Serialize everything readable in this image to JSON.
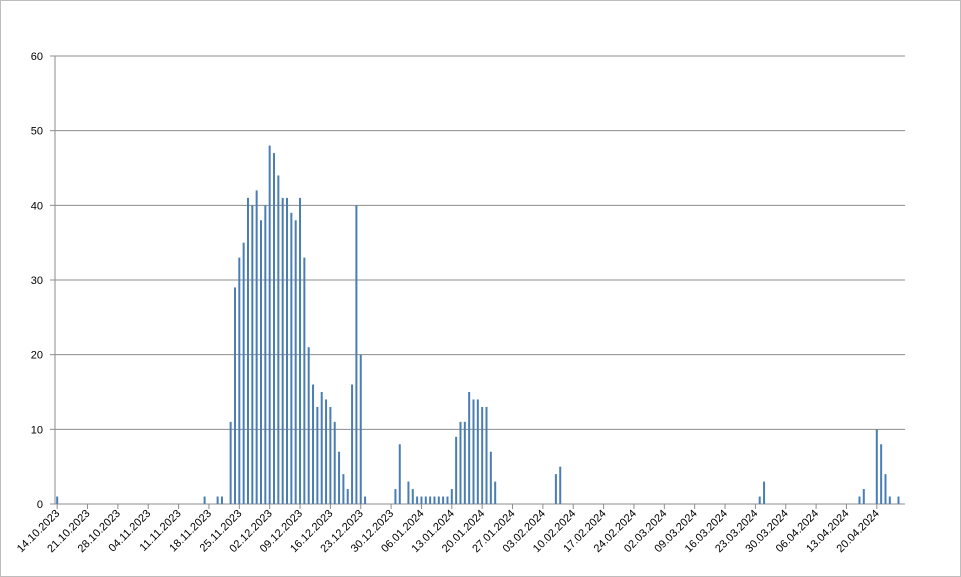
{
  "chart_data": {
    "type": "bar",
    "color": "#4a7db4",
    "grid": true,
    "ylim": [
      0,
      60
    ],
    "yticks": [
      0,
      10,
      20,
      30,
      40,
      50,
      60
    ],
    "categories": [
      "14.10.2023",
      null,
      null,
      null,
      null,
      null,
      null,
      "21.10.2023",
      null,
      null,
      null,
      null,
      null,
      null,
      "28.10.2023",
      null,
      null,
      null,
      null,
      null,
      null,
      "04.11.2023",
      null,
      null,
      null,
      null,
      null,
      null,
      "11.11.2023",
      null,
      null,
      null,
      null,
      null,
      null,
      "18.11.2023",
      null,
      null,
      null,
      null,
      null,
      null,
      "25.11.2023",
      null,
      null,
      null,
      null,
      null,
      null,
      "02.12.2023",
      null,
      null,
      null,
      null,
      null,
      null,
      "09.12.2023",
      null,
      null,
      null,
      null,
      null,
      null,
      "16.12.2023",
      null,
      null,
      null,
      null,
      null,
      null,
      "23.12.2023",
      null,
      null,
      null,
      null,
      null,
      null,
      "30.12.2023",
      null,
      null,
      null,
      null,
      null,
      null,
      "06.01.2024",
      null,
      null,
      null,
      null,
      null,
      null,
      "13.01.2024",
      null,
      null,
      null,
      null,
      null,
      null,
      "20.01.2024",
      null,
      null,
      null,
      null,
      null,
      null,
      "27.01.2024",
      null,
      null,
      null,
      null,
      null,
      null,
      "03.02.2024",
      null,
      null,
      null,
      null,
      null,
      null,
      "10.02.2024",
      null,
      null,
      null,
      null,
      null,
      null,
      "17.02.2024",
      null,
      null,
      null,
      null,
      null,
      null,
      "24.02.2024",
      null,
      null,
      null,
      null,
      null,
      null,
      "02.03.2024",
      null,
      null,
      null,
      null,
      null,
      null,
      "09.03.2024",
      null,
      null,
      null,
      null,
      null,
      null,
      "16.03.2024",
      null,
      null,
      null,
      null,
      null,
      null,
      "23.03.2024",
      null,
      null,
      null,
      null,
      null,
      null,
      "30.03.2024",
      null,
      null,
      null,
      null,
      null,
      null,
      "06.04.2024",
      null,
      null,
      null,
      null,
      null,
      null,
      "13.04.2024",
      null,
      null,
      null,
      null,
      null,
      null,
      "20.04.2024",
      null,
      null,
      null,
      null,
      null,
      null
    ],
    "values": [
      1,
      0,
      0,
      0,
      0,
      0,
      0,
      0,
      0,
      0,
      0,
      0,
      0,
      0,
      0,
      0,
      0,
      0,
      0,
      0,
      0,
      0,
      0,
      0,
      0,
      0,
      0,
      0,
      0,
      0,
      0,
      0,
      0,
      0,
      1,
      0,
      0,
      1,
      1,
      0,
      11,
      29,
      33,
      35,
      41,
      40,
      42,
      38,
      40,
      48,
      47,
      44,
      41,
      41,
      39,
      38,
      41,
      33,
      21,
      16,
      13,
      15,
      14,
      13,
      11,
      7,
      4,
      2,
      16,
      40,
      20,
      1,
      0,
      0,
      0,
      0,
      0,
      0,
      2,
      8,
      0,
      3,
      2,
      1,
      1,
      1,
      1,
      1,
      1,
      1,
      1,
      2,
      9,
      11,
      11,
      15,
      14,
      14,
      13,
      13,
      7,
      3,
      0,
      0,
      0,
      0,
      0,
      0,
      0,
      0,
      0,
      0,
      0,
      0,
      0,
      4,
      5,
      0,
      0,
      0,
      0,
      0,
      0,
      0,
      0,
      0,
      0,
      0,
      0,
      0,
      0,
      0,
      0,
      0,
      0,
      0,
      0,
      0,
      0,
      0,
      0,
      0,
      0,
      0,
      0,
      0,
      0,
      0,
      0,
      0,
      0,
      0,
      0,
      0,
      0,
      0,
      0,
      0,
      0,
      0,
      0,
      0,
      1,
      3,
      0,
      0,
      0,
      0,
      0,
      0,
      0,
      0,
      0,
      0,
      0,
      0,
      0,
      0,
      0,
      0,
      0,
      0,
      0,
      0,
      0,
      1,
      2,
      0,
      0,
      10,
      8,
      4,
      1,
      0,
      1,
      0
    ]
  }
}
